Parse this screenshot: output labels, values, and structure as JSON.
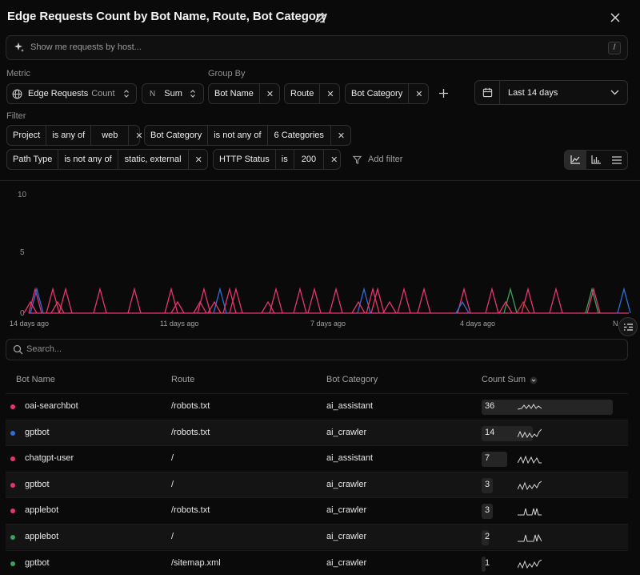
{
  "header": {
    "title": "Edge Requests Count by Bot Name, Route, Bot Category"
  },
  "query": {
    "placeholder": "Show me requests by host...",
    "shortcut": "/"
  },
  "metric": {
    "label": "Metric",
    "metric_name": "Edge Requests",
    "metric_unit": "Count",
    "agg_prefix": "N",
    "agg": "Sum"
  },
  "group_by": {
    "label": "Group By",
    "items": [
      "Bot Name",
      "Route",
      "Bot Category"
    ]
  },
  "date_range": {
    "value": "Last 14 days"
  },
  "filter": {
    "label": "Filter",
    "add_label": "Add filter",
    "items": [
      {
        "field": "Project",
        "op": "is any of",
        "value": "web"
      },
      {
        "field": "Bot Category",
        "op": "is not any of",
        "value": "6 Categories"
      },
      {
        "field": "Path Type",
        "op": "is not any of",
        "value": "static, external"
      },
      {
        "field": "HTTP Status",
        "op": "is",
        "value": "200"
      }
    ]
  },
  "chart_data": {
    "type": "line",
    "yticks": [
      "10",
      "5",
      "0"
    ],
    "ylim": [
      0,
      10
    ],
    "xticks": [
      "14 days ago",
      "11 days ago",
      "7 days ago",
      "4 days ago",
      "N"
    ],
    "grid": false,
    "series_colors": {
      "pink": "#e8356d",
      "blue": "#2e6fd9",
      "red": "#c43a3a",
      "green": "#3aa35b"
    }
  },
  "table_search": {
    "placeholder": "Search..."
  },
  "table": {
    "columns": [
      "Bot Name",
      "Route",
      "Bot Category",
      "Count Sum"
    ],
    "rows": [
      {
        "bot": "oai-searchbot",
        "route": "/robots.txt",
        "category": "ai_assistant",
        "count": "36",
        "color": "#e8356d"
      },
      {
        "bot": "gptbot",
        "route": "/robots.txt",
        "category": "ai_crawler",
        "count": "14",
        "color": "#2e6fd9"
      },
      {
        "bot": "chatgpt-user",
        "route": "/",
        "category": "ai_assistant",
        "count": "7",
        "color": "#e8356d"
      },
      {
        "bot": "gptbot",
        "route": "/",
        "category": "ai_crawler",
        "count": "3",
        "color": "#e8356d"
      },
      {
        "bot": "applebot",
        "route": "/robots.txt",
        "category": "ai_crawler",
        "count": "3",
        "color": "#e8356d"
      },
      {
        "bot": "applebot",
        "route": "/",
        "category": "ai_crawler",
        "count": "2",
        "color": "#3aa35b"
      },
      {
        "bot": "gptbot",
        "route": "/sitemap.xml",
        "category": "ai_crawler",
        "count": "1",
        "color": "#3aa35b"
      }
    ]
  }
}
